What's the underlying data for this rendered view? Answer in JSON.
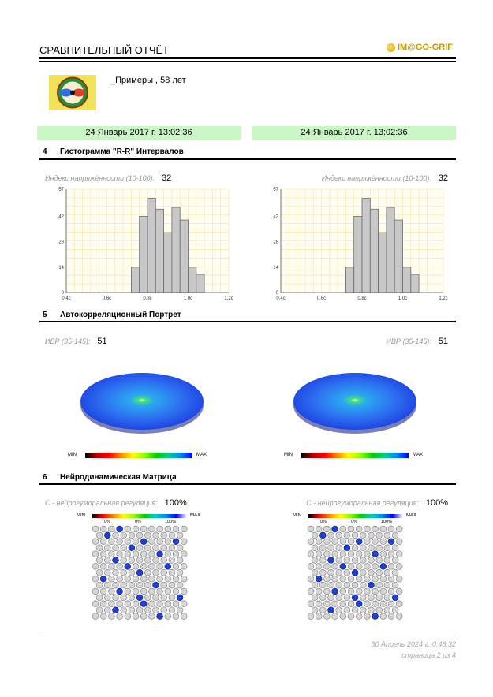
{
  "report": {
    "title": "СРАВНИТЕЛЬНЫЙ ОТЧЁТ",
    "logo": "IM@GO-GRIF",
    "patient": "_Примеры , 58 лет"
  },
  "dates": [
    "24 Январь 2017 г. 13:02:36",
    "24 Январь 2017 г. 13:02:36"
  ],
  "sections": {
    "s4": {
      "num": "4",
      "title": "Гистограмма \"R-R\" Интервалов",
      "metric_label": "Индекс напряжённости (10-100):",
      "values": [
        "32",
        "32"
      ]
    },
    "s5": {
      "num": "5",
      "title": "Автокорреляционный Портрет",
      "metric_label": "ИВР (35-145):",
      "values": [
        "51",
        "51"
      ],
      "min": "MIN",
      "max": "MAX"
    },
    "s6": {
      "num": "6",
      "title": "Нейродинамическая Матрица",
      "metric_label": "С - нейрогуморальная регуляция:",
      "values": [
        "100%",
        "100%"
      ],
      "min": "MIN",
      "max": "MAX",
      "scale_ticks": [
        "0%",
        "0%",
        "100%"
      ]
    }
  },
  "chart_data": [
    {
      "type": "bar",
      "title": "",
      "xlabel": "",
      "ylabel": "",
      "x_ticks": [
        "0,4c",
        "0,6c",
        "0,8c",
        "1,0c",
        "1,2c"
      ],
      "y_ticks": [
        "0",
        "14",
        "28",
        "42",
        "57"
      ],
      "xlim": [
        0.4,
        1.2
      ],
      "ylim": [
        0,
        57
      ],
      "bin_width": 0.04,
      "x": [
        0.72,
        0.76,
        0.8,
        0.84,
        0.88,
        0.92,
        0.96,
        1.0,
        1.04
      ],
      "values": [
        14,
        42,
        52,
        46,
        33,
        47,
        40,
        14,
        10
      ],
      "grid": true
    },
    {
      "type": "bar",
      "title": "",
      "xlabel": "",
      "ylabel": "",
      "x_ticks": [
        "0,4c",
        "0,6c",
        "0,8c",
        "1,0c",
        "1,2c"
      ],
      "y_ticks": [
        "0",
        "14",
        "28",
        "42",
        "57"
      ],
      "xlim": [
        0.4,
        1.2
      ],
      "ylim": [
        0,
        57
      ],
      "bin_width": 0.04,
      "x": [
        0.72,
        0.76,
        0.8,
        0.84,
        0.88,
        0.92,
        0.96,
        1.0,
        1.04
      ],
      "values": [
        14,
        42,
        52,
        46,
        33,
        47,
        40,
        14,
        10
      ],
      "grid": true
    }
  ],
  "matrix": {
    "blue_cells": [
      [
        0,
        3
      ],
      [
        1,
        1
      ],
      [
        2,
        6
      ],
      [
        3,
        4
      ],
      [
        4,
        8
      ],
      [
        5,
        2
      ],
      [
        6,
        9
      ],
      [
        7,
        5
      ],
      [
        8,
        1
      ],
      [
        9,
        7
      ],
      [
        10,
        3
      ],
      [
        11,
        10
      ],
      [
        12,
        6
      ],
      [
        13,
        2
      ],
      [
        14,
        8
      ],
      [
        2,
        10
      ],
      [
        6,
        4
      ],
      [
        11,
        5
      ]
    ]
  },
  "footer": {
    "date": "30 Апрель 2024 г. 0:48:32",
    "page": "страница 2 из 4"
  }
}
